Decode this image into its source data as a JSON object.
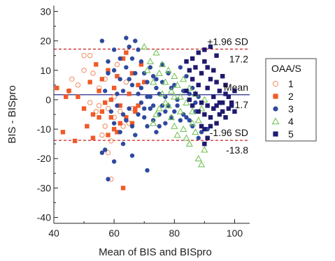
{
  "chart_data": {
    "type": "scatter",
    "title": "",
    "xlabel": "Mean of BIS and BISpro",
    "ylabel": "BIS - BISpro",
    "xlim": [
      40,
      105
    ],
    "ylim": [
      -42,
      32
    ],
    "xticks": [
      40,
      60,
      80,
      100
    ],
    "yticks": [
      30,
      20,
      10,
      0,
      -10,
      -20,
      -30,
      -40
    ],
    "grid": false,
    "legend_title": "OAA/S",
    "legend_position": "right",
    "reference_lines": [
      {
        "name": "+1.96 SD",
        "value": 17.2,
        "color": "#cc1f1f",
        "style": "dashed"
      },
      {
        "name": "Mean",
        "value": 1.7,
        "color": "#2a2a8c",
        "style": "solid"
      },
      {
        "name": "-1.96 SD",
        "value": -13.8,
        "color": "#cc1f1f",
        "style": "dashed"
      }
    ],
    "annotations": [
      {
        "label": "+1.96 SD",
        "value_text": "17.2"
      },
      {
        "label": "Mean",
        "value_text": "1.7"
      },
      {
        "label": "-1.96 SD",
        "value_text": "-13.8"
      }
    ],
    "series": [
      {
        "name": "1",
        "marker": "open-circle",
        "color": "#f08a5d",
        "points": [
          [
            50,
            15
          ],
          [
            52,
            15
          ],
          [
            46,
            7
          ],
          [
            48,
            5
          ],
          [
            50,
            10
          ],
          [
            53,
            9
          ],
          [
            55,
            4
          ],
          [
            57,
            7
          ],
          [
            52,
            -1
          ],
          [
            55,
            -2
          ],
          [
            58,
            -3
          ],
          [
            60,
            1
          ],
          [
            62,
            -4
          ],
          [
            63,
            -9
          ],
          [
            64,
            6
          ],
          [
            61,
            12
          ],
          [
            59,
            -14
          ],
          [
            56,
            -12
          ],
          [
            58,
            -18
          ],
          [
            59,
            -27
          ],
          [
            45,
            3
          ],
          [
            66,
            -3
          ],
          [
            65,
            -8
          ],
          [
            60,
            -6
          ],
          [
            54,
            -4
          ],
          [
            57,
            -9
          ]
        ]
      },
      {
        "name": "2",
        "marker": "square",
        "color": "#f05a28",
        "points": [
          [
            41,
            4
          ],
          [
            43,
            -11
          ],
          [
            45,
            3
          ],
          [
            47,
            -14
          ],
          [
            48,
            1
          ],
          [
            50,
            -3
          ],
          [
            51,
            -9
          ],
          [
            52,
            6
          ],
          [
            53,
            -5
          ],
          [
            54,
            12
          ],
          [
            55,
            3
          ],
          [
            56,
            7
          ],
          [
            57,
            -1
          ],
          [
            58,
            10
          ],
          [
            59,
            -6
          ],
          [
            60,
            4
          ],
          [
            61,
            8
          ],
          [
            62,
            -2
          ],
          [
            63,
            14
          ],
          [
            64,
            -6
          ],
          [
            65,
            2
          ],
          [
            66,
            9
          ],
          [
            67,
            -3
          ],
          [
            68,
            5
          ],
          [
            69,
            12
          ],
          [
            63,
            -30
          ],
          [
            60,
            -10
          ],
          [
            56,
            -4
          ],
          [
            58,
            -12
          ],
          [
            62,
            -8
          ],
          [
            66,
            -8
          ],
          [
            67,
            -4
          ],
          [
            64,
            16
          ],
          [
            61,
            -11
          ],
          [
            55,
            -6
          ],
          [
            44,
            1
          ],
          [
            53,
            -13
          ],
          [
            59,
            0
          ],
          [
            68,
            -2
          ],
          [
            70,
            6
          ]
        ]
      },
      {
        "name": "3",
        "marker": "filled-circle",
        "color": "#2e4a9e",
        "points": [
          [
            56,
            20
          ],
          [
            58,
            13
          ],
          [
            60,
            10
          ],
          [
            62,
            7
          ],
          [
            63,
            3
          ],
          [
            64,
            21
          ],
          [
            65,
            18
          ],
          [
            66,
            14
          ],
          [
            67,
            20
          ],
          [
            68,
            17
          ],
          [
            69,
            13
          ],
          [
            70,
            9
          ],
          [
            71,
            6
          ],
          [
            72,
            11
          ],
          [
            73,
            8
          ],
          [
            74,
            4
          ],
          [
            75,
            2
          ],
          [
            76,
            6
          ],
          [
            77,
            1
          ],
          [
            78,
            -2
          ],
          [
            79,
            4
          ],
          [
            80,
            -4
          ],
          [
            81,
            0
          ],
          [
            82,
            -7
          ],
          [
            83,
            3
          ],
          [
            84,
            -6
          ],
          [
            85,
            2
          ],
          [
            86,
            -9
          ],
          [
            87,
            -1
          ],
          [
            88,
            -13
          ],
          [
            57,
            3
          ],
          [
            59,
            -4
          ],
          [
            60,
            -8
          ],
          [
            61,
            -2
          ],
          [
            62,
            -11
          ],
          [
            63,
            -15
          ],
          [
            64,
            -7
          ],
          [
            65,
            -3
          ],
          [
            66,
            -9
          ],
          [
            67,
            -12
          ],
          [
            68,
            -5
          ],
          [
            69,
            -1
          ],
          [
            70,
            -6
          ],
          [
            71,
            -9
          ],
          [
            72,
            -3
          ],
          [
            73,
            -7
          ],
          [
            74,
            -11
          ],
          [
            75,
            -5
          ],
          [
            76,
            -2
          ],
          [
            77,
            -8
          ],
          [
            56,
            -18
          ],
          [
            57,
            -17
          ],
          [
            58,
            -27
          ],
          [
            60,
            -21
          ],
          [
            71,
            -24
          ],
          [
            66,
            -19
          ],
          [
            58,
            9
          ],
          [
            60,
            17
          ],
          [
            62,
            14
          ],
          [
            64,
            11
          ],
          [
            66,
            5
          ],
          [
            68,
            2
          ],
          [
            70,
            -3
          ],
          [
            72,
            1
          ],
          [
            74,
            7
          ],
          [
            76,
            12
          ],
          [
            78,
            9
          ],
          [
            80,
            5
          ],
          [
            82,
            11
          ],
          [
            84,
            8
          ],
          [
            86,
            4
          ],
          [
            88,
            1
          ],
          [
            61,
            2
          ],
          [
            63,
            -5
          ],
          [
            65,
            7
          ],
          [
            67,
            9
          ],
          [
            69,
            4
          ],
          [
            71,
            1
          ],
          [
            73,
            -2
          ],
          [
            75,
            -9
          ],
          [
            77,
            -4
          ],
          [
            79,
            -6
          ],
          [
            81,
            -2
          ],
          [
            83,
            -5
          ],
          [
            85,
            -7
          ],
          [
            87,
            -4
          ],
          [
            89,
            -11
          ],
          [
            90,
            -15
          ],
          [
            91,
            -10
          ]
        ]
      },
      {
        "name": "4",
        "marker": "open-triangle",
        "color": "#6abf4b",
        "points": [
          [
            70,
            18
          ],
          [
            72,
            13
          ],
          [
            74,
            16
          ],
          [
            75,
            9
          ],
          [
            76,
            12
          ],
          [
            77,
            6
          ],
          [
            78,
            10
          ],
          [
            79,
            3
          ],
          [
            80,
            8
          ],
          [
            81,
            5
          ],
          [
            82,
            1
          ],
          [
            83,
            7
          ],
          [
            84,
            -1
          ],
          [
            85,
            4
          ],
          [
            86,
            -4
          ],
          [
            87,
            2
          ],
          [
            88,
            -7
          ],
          [
            89,
            -3
          ],
          [
            90,
            0
          ],
          [
            78,
            -2
          ],
          [
            79,
            -6
          ],
          [
            80,
            -9
          ],
          [
            81,
            -12
          ],
          [
            82,
            -4
          ],
          [
            83,
            -10
          ],
          [
            84,
            -13
          ],
          [
            85,
            -15
          ],
          [
            86,
            -8
          ],
          [
            87,
            -11
          ],
          [
            88,
            -20
          ],
          [
            89,
            -22
          ],
          [
            90,
            -17
          ],
          [
            77,
            -1
          ],
          [
            76,
            2
          ],
          [
            75,
            -3
          ],
          [
            73,
            6
          ],
          [
            71,
            10
          ],
          [
            74,
            -5
          ],
          [
            73,
            -8
          ],
          [
            80,
            1
          ]
        ]
      },
      {
        "name": "5",
        "marker": "filled-square",
        "color": "#1f1a6e",
        "points": [
          [
            84,
            13
          ],
          [
            85,
            10
          ],
          [
            86,
            7
          ],
          [
            87,
            11
          ],
          [
            88,
            5
          ],
          [
            89,
            9
          ],
          [
            90,
            13
          ],
          [
            91,
            11
          ],
          [
            92,
            7
          ],
          [
            93,
            10
          ],
          [
            94,
            6
          ],
          [
            95,
            3
          ],
          [
            96,
            8
          ],
          [
            97,
            5
          ],
          [
            98,
            1
          ],
          [
            99,
            -1
          ],
          [
            100,
            3
          ],
          [
            84,
            3
          ],
          [
            85,
            0
          ],
          [
            86,
            -2
          ],
          [
            87,
            2
          ],
          [
            88,
            -4
          ],
          [
            89,
            -1
          ],
          [
            90,
            -5
          ],
          [
            91,
            -2
          ],
          [
            92,
            -6
          ],
          [
            93,
            -3
          ],
          [
            94,
            -8
          ],
          [
            95,
            -5
          ],
          [
            96,
            -1
          ],
          [
            97,
            -6
          ],
          [
            98,
            -3
          ],
          [
            99,
            -2
          ],
          [
            100,
            -4
          ],
          [
            86,
            14
          ],
          [
            88,
            16
          ],
          [
            90,
            17
          ],
          [
            92,
            18
          ],
          [
            94,
            15
          ],
          [
            91,
            4
          ],
          [
            93,
            1
          ],
          [
            95,
            -1
          ],
          [
            97,
            2
          ],
          [
            89,
            -9
          ],
          [
            90,
            -10
          ],
          [
            92,
            -9
          ],
          [
            91,
            -13
          ],
          [
            90,
            -15
          ],
          [
            94,
            -2
          ],
          [
            96,
            -4
          ]
        ]
      }
    ]
  }
}
